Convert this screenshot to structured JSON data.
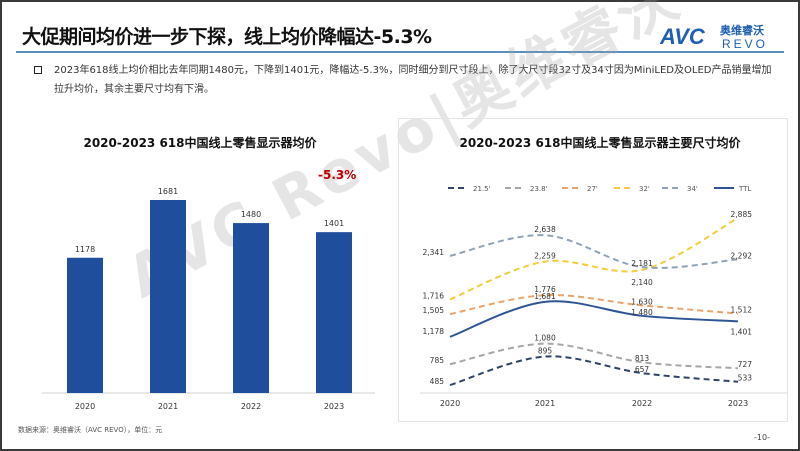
{
  "header": {
    "title": "大促期间均价进一步下探，线上均价降幅达-5.3%",
    "logo_text": "AVC 奥维睿沃 REVO"
  },
  "bullet": {
    "text": "2023年618线上均价相比去年同期1480元，下降到1401元，降幅达-5.3%，同时细分到尺寸段上，除了大尺寸段32寸及34寸因为MiniLED及OLED产品销量增加拉升均价，其余主要尺寸均有下滑。"
  },
  "watermark": "AVC Revo|奥维睿沃",
  "footer": {
    "source": "数据来源：奥维睿沃（AVC REVO），单位：元",
    "page": "-10-"
  },
  "chart_data": [
    {
      "type": "bar",
      "title": "2020-2023 618中国线上零售显示器均价",
      "categories": [
        "2020",
        "2021",
        "2022",
        "2023"
      ],
      "values": [
        1178,
        1681,
        1480,
        1401
      ],
      "annotation": "-5.3%",
      "color": "#1f4e9c",
      "ylim": [
        0,
        1750
      ],
      "grid": false
    },
    {
      "type": "line",
      "title": "2020-2023 618中国线上零售显示器主要尺寸均价",
      "categories": [
        "2020",
        "2021",
        "2022",
        "2023"
      ],
      "legend": "top",
      "ylim": [
        400,
        3000
      ],
      "grid": false,
      "series": [
        {
          "name": "21.5'",
          "values": [
            485,
            895,
            657,
            533
          ],
          "color": "#2f4566",
          "style": "dashed"
        },
        {
          "name": "23.8'",
          "values": [
            785,
            1080,
            813,
            727
          ],
          "color": "#a6a6a6",
          "style": "dashed"
        },
        {
          "name": "27'",
          "values": [
            1505,
            1776,
            1630,
            1512
          ],
          "color": "#e8a46a",
          "style": "dashed"
        },
        {
          "name": "32'",
          "values": [
            1716,
            2259,
            2140,
            2885
          ],
          "color": "#f2cc3a",
          "style": "dashed"
        },
        {
          "name": "34'",
          "values": [
            2341,
            2638,
            2181,
            2292
          ],
          "color": "#8fa3b8",
          "style": "dashed"
        },
        {
          "name": "TTL",
          "values": [
            1178,
            1681,
            1480,
            1401
          ],
          "color": "#2f5597",
          "style": "solid"
        }
      ]
    }
  ]
}
